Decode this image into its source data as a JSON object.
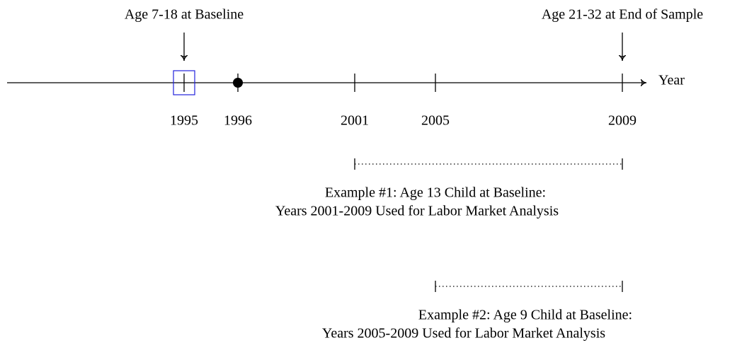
{
  "axis_label": "Year",
  "ticks": [
    "1995",
    "1996",
    "2001",
    "2005",
    "2009"
  ],
  "annotations": {
    "baseline": "Age 7-18 at Baseline",
    "end": "Age 21-32 at End of Sample"
  },
  "examples": [
    {
      "line1": "Example #1: Age 13 Child at Baseline:",
      "line2": "Years 2001-2009 Used for Labor Market Analysis"
    },
    {
      "line1": "Example #2: Age 9 Child at Baseline:",
      "line2": "Years 2005-2009 Used for Labor Market Analysis"
    }
  ]
}
